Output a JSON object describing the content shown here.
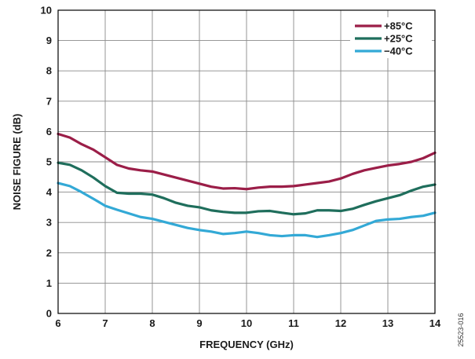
{
  "figure_id": "25523-016",
  "chart_data": {
    "type": "line",
    "xlabel": "FREQUENCY (GHz)",
    "ylabel": "NOISE FIGURE (dB)",
    "xlim": [
      6,
      14
    ],
    "ylim": [
      0,
      10
    ],
    "xticks": [
      6,
      7,
      8,
      9,
      10,
      11,
      12,
      13,
      14
    ],
    "yticks": [
      0,
      1,
      2,
      3,
      4,
      5,
      6,
      7,
      8,
      9,
      10
    ],
    "grid": true,
    "legend_position": "top-right",
    "series": [
      {
        "name": "+85°C",
        "color": "#9b1e48",
        "x": [
          6.0,
          6.25,
          6.5,
          6.75,
          7.0,
          7.25,
          7.5,
          7.75,
          8.0,
          8.25,
          8.5,
          8.75,
          9.0,
          9.25,
          9.5,
          9.75,
          10.0,
          10.25,
          10.5,
          10.75,
          11.0,
          11.25,
          11.5,
          11.75,
          12.0,
          12.25,
          12.5,
          12.75,
          13.0,
          13.25,
          13.5,
          13.75,
          14.0
        ],
        "y": [
          5.92,
          5.8,
          5.58,
          5.4,
          5.15,
          4.9,
          4.78,
          4.72,
          4.68,
          4.58,
          4.48,
          4.38,
          4.28,
          4.18,
          4.12,
          4.13,
          4.1,
          4.15,
          4.18,
          4.18,
          4.2,
          4.25,
          4.3,
          4.35,
          4.45,
          4.6,
          4.72,
          4.8,
          4.88,
          4.93,
          5.0,
          5.12,
          5.3
        ]
      },
      {
        "name": "+25°C",
        "color": "#1f6e5c",
        "x": [
          6.0,
          6.25,
          6.5,
          6.75,
          7.0,
          7.25,
          7.5,
          7.75,
          8.0,
          8.25,
          8.5,
          8.75,
          9.0,
          9.25,
          9.5,
          9.75,
          10.0,
          10.25,
          10.5,
          10.75,
          11.0,
          11.25,
          11.5,
          11.75,
          12.0,
          12.25,
          12.5,
          12.75,
          13.0,
          13.25,
          13.5,
          13.75,
          14.0
        ],
        "y": [
          4.97,
          4.9,
          4.72,
          4.48,
          4.2,
          3.98,
          3.95,
          3.95,
          3.92,
          3.8,
          3.65,
          3.55,
          3.5,
          3.4,
          3.35,
          3.32,
          3.32,
          3.37,
          3.38,
          3.32,
          3.27,
          3.3,
          3.4,
          3.4,
          3.38,
          3.45,
          3.58,
          3.7,
          3.8,
          3.9,
          4.05,
          4.18,
          4.25
        ]
      },
      {
        "name": "−40°C",
        "color": "#33a9d6",
        "x": [
          6.0,
          6.25,
          6.5,
          6.75,
          7.0,
          7.25,
          7.5,
          7.75,
          8.0,
          8.25,
          8.5,
          8.75,
          9.0,
          9.25,
          9.5,
          9.75,
          10.0,
          10.25,
          10.5,
          10.75,
          11.0,
          11.25,
          11.5,
          11.75,
          12.0,
          12.25,
          12.5,
          12.75,
          13.0,
          13.25,
          13.5,
          13.75,
          14.0
        ],
        "y": [
          4.3,
          4.2,
          4.0,
          3.78,
          3.55,
          3.42,
          3.3,
          3.18,
          3.12,
          3.02,
          2.92,
          2.82,
          2.75,
          2.7,
          2.62,
          2.65,
          2.7,
          2.65,
          2.58,
          2.55,
          2.58,
          2.58,
          2.52,
          2.58,
          2.65,
          2.75,
          2.9,
          3.05,
          3.1,
          3.12,
          3.18,
          3.22,
          3.32
        ]
      }
    ]
  }
}
